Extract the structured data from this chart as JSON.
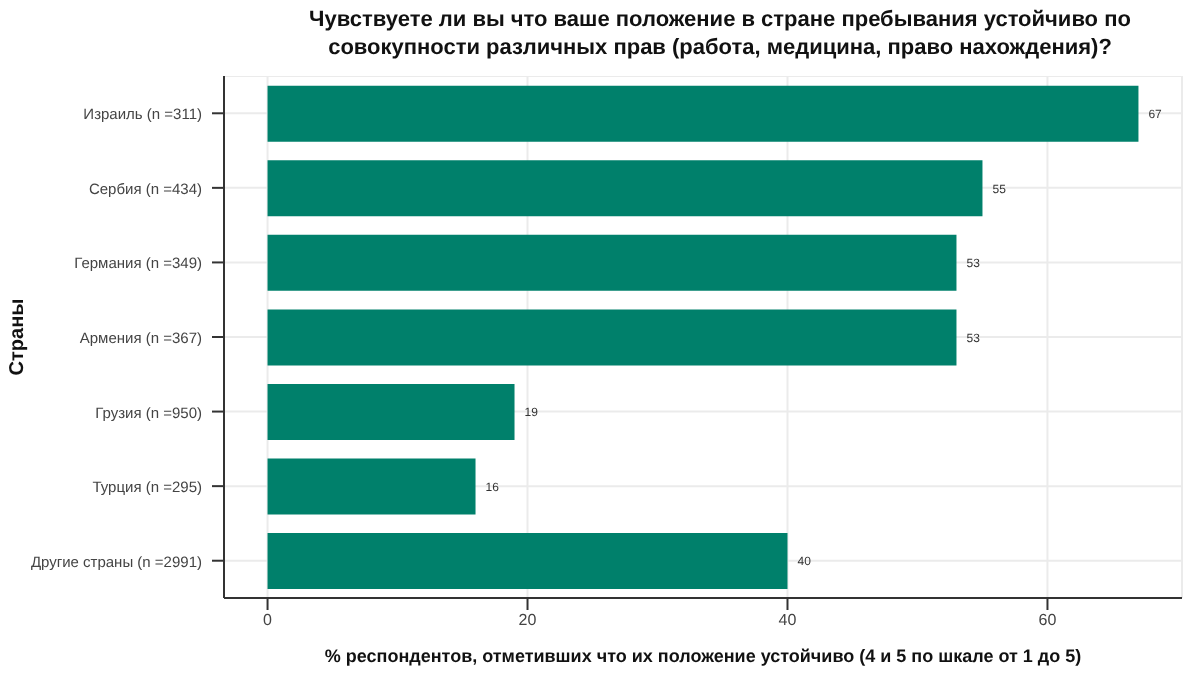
{
  "chart_data": {
    "type": "bar",
    "orientation": "horizontal",
    "title": "Чувствуете ли вы что ваше положение в стране пребывания устойчиво по совокупности различных прав (работа, медицина, право нахождения)?",
    "xlabel": "% респондентов, отметивших что их положение устойчиво (4 и 5 по шкале от 1 до 5)",
    "ylabel": "Страны",
    "categories": [
      "Израиль (n =311)",
      "Сербия (n =434)",
      "Германия (n =349)",
      "Армения (n =367)",
      "Грузия (n =950)",
      "Турция (n =295)",
      "Другие страны (n =2991)"
    ],
    "values": [
      67,
      55,
      53,
      53,
      19,
      16,
      40
    ],
    "color": "#00806b",
    "xlim": [
      -3.35,
      70.35
    ],
    "xticks": [
      0,
      20,
      40,
      60
    ],
    "grid": true,
    "data_labels": true
  }
}
